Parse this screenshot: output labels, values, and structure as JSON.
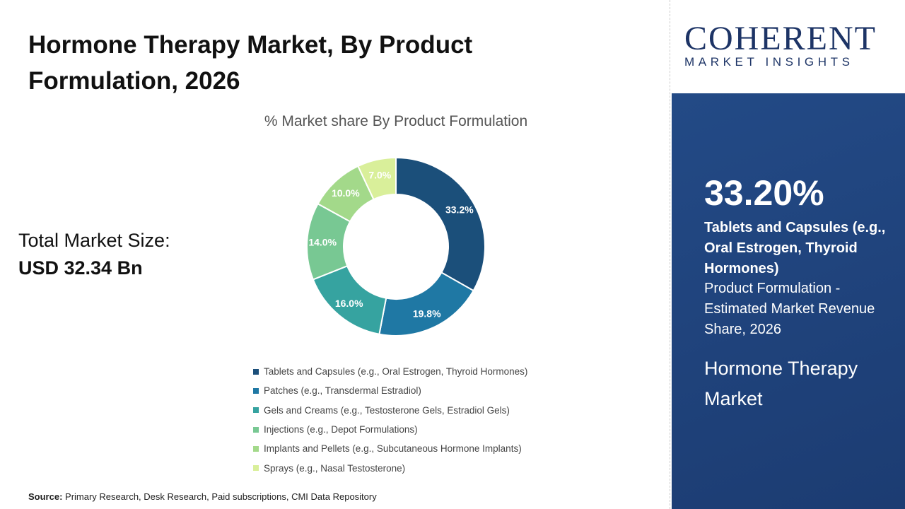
{
  "title": "Hormone Therapy Market, By Product Formulation, 2026",
  "total_market": {
    "label": "Total Market Size:",
    "value": "USD 32.34 Bn"
  },
  "source": {
    "label": "Source:",
    "text": " Primary Research, Desk Research, Paid subscriptions, CMI Data Repository"
  },
  "logo": {
    "name": "COHERENT",
    "tagline": "MARKET INSIGHTS"
  },
  "panel": {
    "percent": "33.20%",
    "segment": "Tablets and Capsules (e.g., Oral Estrogen, Thyroid Hormones)",
    "description": "Product Formulation - Estimated Market Revenue Share, 2026",
    "market": "Hormone Therapy Market"
  },
  "chart_data": {
    "type": "pie",
    "donut": true,
    "title": "% Market share By Product Formulation",
    "categories": [
      "Tablets and Capsules (e.g., Oral Estrogen, Thyroid Hormones)",
      "Patches (e.g., Transdermal Estradiol)",
      "Gels and Creams (e.g., Testosterone Gels, Estradiol Gels)",
      "Injections (e.g., Depot Formulations)",
      "Implants and Pellets (e.g., Subcutaneous Hormone Implants)",
      "Sprays (e.g., Nasal Testosterone)"
    ],
    "values": [
      33.2,
      19.8,
      16.0,
      14.0,
      10.0,
      7.0
    ],
    "labels": [
      "33.2%",
      "19.8%",
      "16.0%",
      "14.0%",
      "10.0%",
      "7.0%"
    ],
    "colors": [
      "#1b4f7a",
      "#1f78a4",
      "#36a3a0",
      "#78c893",
      "#a3d98a",
      "#d9ef9a"
    ],
    "legend_position": "bottom"
  }
}
